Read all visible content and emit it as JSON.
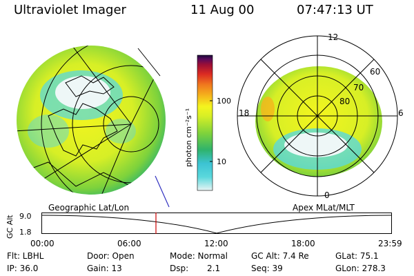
{
  "header": {
    "instrument": "Ultraviolet Imager",
    "date": "11 Aug 00",
    "time": "07:47:13 UT"
  },
  "images": {
    "left_label": "Geographic Lat/Lon",
    "right_label": "Apex MLat/MLT"
  },
  "colorbar": {
    "unit_label": "photon cm⁻²s⁻¹",
    "ticks": [
      "100",
      "10"
    ],
    "colors": [
      "#e8f4f4",
      "#5ad8dc",
      "#3cc3d3",
      "#2fb36c",
      "#7dd23c",
      "#d7ef26",
      "#f4f51e",
      "#f5b51c",
      "#f07a1e",
      "#dc2b22",
      "#9c0f36",
      "#5a0a5a",
      "#1a0a3a"
    ]
  },
  "polar": {
    "mlt_labels": {
      "top": "12",
      "bottom": "0",
      "left": "18",
      "right": "6"
    },
    "mlat_labels": [
      "60",
      "70",
      "80"
    ]
  },
  "altitude_plot": {
    "ylabel": "GC Alt",
    "y_ticks": [
      "9.0",
      "1.8"
    ],
    "x_ticks": [
      "00:00",
      "06:00",
      "12:00",
      "18:00",
      "23:59"
    ],
    "marker_color": "#cc0000"
  },
  "info": {
    "flt": "Flt: LBHL",
    "ip": "IP: 36.0",
    "door": "Door: Open",
    "gain": "Gain: 13",
    "mode": "Mode: Normal",
    "dsp_label": "Dsp:",
    "dsp_value": "2.1",
    "gc_alt": "GC Alt: 7.4 Re",
    "seq": "Seq: 39",
    "glat": "GLat:  75.1",
    "glon": "GLon: 278.3"
  }
}
